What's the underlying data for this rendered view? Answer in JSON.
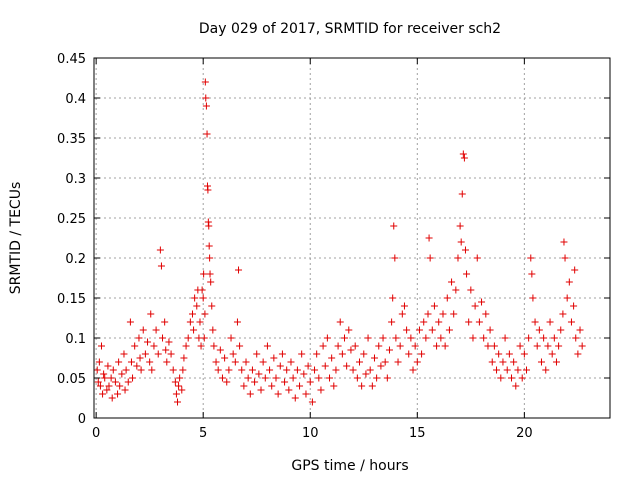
{
  "chart_data": {
    "type": "scatter",
    "title": "Day 029 of 2017, SRMTID for receiver sch2",
    "xlabel": "GPS time / hours",
    "ylabel": "SRMTID / TECUs",
    "xlim": [
      -0.1,
      24
    ],
    "ylim": [
      0,
      0.45
    ],
    "grid": true,
    "marker": "+",
    "color": "#e00000",
    "x_ticks": [
      0,
      5,
      10,
      15,
      20
    ],
    "x_tick_labels": [
      "0",
      "5",
      "10",
      "15",
      "20"
    ],
    "y_ticks": [
      0,
      0.05,
      0.1,
      0.15,
      0.2,
      0.25,
      0.3,
      0.35,
      0.4,
      0.45
    ],
    "y_tick_labels": [
      "0",
      "0.05",
      "0.1",
      "0.15",
      "0.2",
      "0.25",
      "0.3",
      "0.35",
      "0.4",
      "0.45"
    ],
    "series": [
      {
        "name": "SRMTID",
        "points": [
          [
            0.05,
            0.06
          ],
          [
            0.1,
            0.045
          ],
          [
            0.15,
            0.07
          ],
          [
            0.2,
            0.04
          ],
          [
            0.25,
            0.09
          ],
          [
            0.3,
            0.03
          ],
          [
            0.35,
            0.055
          ],
          [
            0.4,
            0.05
          ],
          [
            0.5,
            0.035
          ],
          [
            0.55,
            0.065
          ],
          [
            0.6,
            0.04
          ],
          [
            0.7,
            0.05
          ],
          [
            0.75,
            0.025
          ],
          [
            0.8,
            0.06
          ],
          [
            0.9,
            0.045
          ],
          [
            1.0,
            0.03
          ],
          [
            1.05,
            0.07
          ],
          [
            1.1,
            0.04
          ],
          [
            1.2,
            0.055
          ],
          [
            1.3,
            0.08
          ],
          [
            1.35,
            0.035
          ],
          [
            1.4,
            0.06
          ],
          [
            1.5,
            0.045
          ],
          [
            1.6,
            0.12
          ],
          [
            1.65,
            0.07
          ],
          [
            1.7,
            0.05
          ],
          [
            1.8,
            0.09
          ],
          [
            1.9,
            0.065
          ],
          [
            2.0,
            0.1
          ],
          [
            2.05,
            0.075
          ],
          [
            2.1,
            0.06
          ],
          [
            2.2,
            0.11
          ],
          [
            2.3,
            0.08
          ],
          [
            2.4,
            0.095
          ],
          [
            2.5,
            0.07
          ],
          [
            2.55,
            0.13
          ],
          [
            2.6,
            0.06
          ],
          [
            2.7,
            0.09
          ],
          [
            2.8,
            0.11
          ],
          [
            2.9,
            0.08
          ],
          [
            3.0,
            0.21
          ],
          [
            3.05,
            0.19
          ],
          [
            3.1,
            0.1
          ],
          [
            3.2,
            0.12
          ],
          [
            3.25,
            0.085
          ],
          [
            3.3,
            0.07
          ],
          [
            3.4,
            0.095
          ],
          [
            3.5,
            0.08
          ],
          [
            3.6,
            0.06
          ],
          [
            3.7,
            0.045
          ],
          [
            3.75,
            0.03
          ],
          [
            3.8,
            0.02
          ],
          [
            3.85,
            0.04
          ],
          [
            3.9,
            0.05
          ],
          [
            4.0,
            0.035
          ],
          [
            4.05,
            0.06
          ],
          [
            4.1,
            0.075
          ],
          [
            4.2,
            0.09
          ],
          [
            4.3,
            0.1
          ],
          [
            4.4,
            0.12
          ],
          [
            4.5,
            0.13
          ],
          [
            4.55,
            0.11
          ],
          [
            4.6,
            0.15
          ],
          [
            4.7,
            0.14
          ],
          [
            4.75,
            0.16
          ],
          [
            4.8,
            0.1
          ],
          [
            4.85,
            0.12
          ],
          [
            4.9,
            0.09
          ],
          [
            4.95,
            0.16
          ],
          [
            5.0,
            0.15
          ],
          [
            5.02,
            0.18
          ],
          [
            5.05,
            0.1
          ],
          [
            5.08,
            0.13
          ],
          [
            5.1,
            0.42
          ],
          [
            5.12,
            0.4
          ],
          [
            5.15,
            0.39
          ],
          [
            5.18,
            0.355
          ],
          [
            5.2,
            0.29
          ],
          [
            5.22,
            0.285
          ],
          [
            5.24,
            0.245
          ],
          [
            5.26,
            0.24
          ],
          [
            5.28,
            0.215
          ],
          [
            5.3,
            0.2
          ],
          [
            5.32,
            0.18
          ],
          [
            5.35,
            0.17
          ],
          [
            5.4,
            0.14
          ],
          [
            5.45,
            0.11
          ],
          [
            5.5,
            0.09
          ],
          [
            5.6,
            0.07
          ],
          [
            5.7,
            0.06
          ],
          [
            5.8,
            0.085
          ],
          [
            5.9,
            0.05
          ],
          [
            6.0,
            0.075
          ],
          [
            6.1,
            0.045
          ],
          [
            6.2,
            0.06
          ],
          [
            6.3,
            0.1
          ],
          [
            6.4,
            0.08
          ],
          [
            6.5,
            0.07
          ],
          [
            6.6,
            0.12
          ],
          [
            6.65,
            0.185
          ],
          [
            6.7,
            0.09
          ],
          [
            6.8,
            0.06
          ],
          [
            6.9,
            0.04
          ],
          [
            7.0,
            0.07
          ],
          [
            7.1,
            0.05
          ],
          [
            7.2,
            0.03
          ],
          [
            7.3,
            0.06
          ],
          [
            7.4,
            0.045
          ],
          [
            7.5,
            0.08
          ],
          [
            7.6,
            0.055
          ],
          [
            7.7,
            0.035
          ],
          [
            7.8,
            0.07
          ],
          [
            7.9,
            0.05
          ],
          [
            8.0,
            0.09
          ],
          [
            8.1,
            0.06
          ],
          [
            8.2,
            0.04
          ],
          [
            8.3,
            0.075
          ],
          [
            8.4,
            0.05
          ],
          [
            8.5,
            0.03
          ],
          [
            8.6,
            0.065
          ],
          [
            8.7,
            0.08
          ],
          [
            8.8,
            0.045
          ],
          [
            8.9,
            0.06
          ],
          [
            9.0,
            0.035
          ],
          [
            9.1,
            0.07
          ],
          [
            9.2,
            0.05
          ],
          [
            9.3,
            0.025
          ],
          [
            9.4,
            0.06
          ],
          [
            9.5,
            0.04
          ],
          [
            9.6,
            0.08
          ],
          [
            9.7,
            0.055
          ],
          [
            9.8,
            0.03
          ],
          [
            9.9,
            0.065
          ],
          [
            10.0,
            0.045
          ],
          [
            10.1,
            0.02
          ],
          [
            10.2,
            0.06
          ],
          [
            10.3,
            0.08
          ],
          [
            10.4,
            0.05
          ],
          [
            10.5,
            0.035
          ],
          [
            10.6,
            0.09
          ],
          [
            10.7,
            0.065
          ],
          [
            10.8,
            0.1
          ],
          [
            10.9,
            0.05
          ],
          [
            11.0,
            0.075
          ],
          [
            11.1,
            0.04
          ],
          [
            11.2,
            0.06
          ],
          [
            11.3,
            0.09
          ],
          [
            11.4,
            0.12
          ],
          [
            11.5,
            0.08
          ],
          [
            11.6,
            0.1
          ],
          [
            11.7,
            0.065
          ],
          [
            11.8,
            0.11
          ],
          [
            11.9,
            0.085
          ],
          [
            12.0,
            0.06
          ],
          [
            12.1,
            0.09
          ],
          [
            12.2,
            0.05
          ],
          [
            12.3,
            0.07
          ],
          [
            12.4,
            0.04
          ],
          [
            12.5,
            0.08
          ],
          [
            12.6,
            0.055
          ],
          [
            12.7,
            0.1
          ],
          [
            12.8,
            0.06
          ],
          [
            12.9,
            0.04
          ],
          [
            13.0,
            0.075
          ],
          [
            13.1,
            0.05
          ],
          [
            13.2,
            0.09
          ],
          [
            13.3,
            0.065
          ],
          [
            13.4,
            0.1
          ],
          [
            13.5,
            0.07
          ],
          [
            13.6,
            0.05
          ],
          [
            13.7,
            0.085
          ],
          [
            13.8,
            0.12
          ],
          [
            13.85,
            0.15
          ],
          [
            13.9,
            0.24
          ],
          [
            13.95,
            0.2
          ],
          [
            14.0,
            0.1
          ],
          [
            14.1,
            0.07
          ],
          [
            14.2,
            0.09
          ],
          [
            14.3,
            0.13
          ],
          [
            14.4,
            0.14
          ],
          [
            14.5,
            0.11
          ],
          [
            14.6,
            0.08
          ],
          [
            14.7,
            0.1
          ],
          [
            14.8,
            0.06
          ],
          [
            14.9,
            0.09
          ],
          [
            15.0,
            0.07
          ],
          [
            15.1,
            0.11
          ],
          [
            15.2,
            0.08
          ],
          [
            15.3,
            0.12
          ],
          [
            15.4,
            0.1
          ],
          [
            15.5,
            0.13
          ],
          [
            15.55,
            0.225
          ],
          [
            15.6,
            0.2
          ],
          [
            15.7,
            0.11
          ],
          [
            15.8,
            0.14
          ],
          [
            15.9,
            0.09
          ],
          [
            16.0,
            0.12
          ],
          [
            16.1,
            0.1
          ],
          [
            16.2,
            0.13
          ],
          [
            16.3,
            0.09
          ],
          [
            16.4,
            0.15
          ],
          [
            16.5,
            0.11
          ],
          [
            16.6,
            0.17
          ],
          [
            16.7,
            0.13
          ],
          [
            16.8,
            0.16
          ],
          [
            16.9,
            0.2
          ],
          [
            17.0,
            0.24
          ],
          [
            17.05,
            0.22
          ],
          [
            17.1,
            0.28
          ],
          [
            17.15,
            0.33
          ],
          [
            17.2,
            0.325
          ],
          [
            17.25,
            0.21
          ],
          [
            17.3,
            0.18
          ],
          [
            17.4,
            0.12
          ],
          [
            17.5,
            0.16
          ],
          [
            17.6,
            0.1
          ],
          [
            17.7,
            0.14
          ],
          [
            17.8,
            0.2
          ],
          [
            17.9,
            0.12
          ],
          [
            18.0,
            0.145
          ],
          [
            18.1,
            0.1
          ],
          [
            18.2,
            0.13
          ],
          [
            18.3,
            0.09
          ],
          [
            18.4,
            0.11
          ],
          [
            18.5,
            0.07
          ],
          [
            18.6,
            0.09
          ],
          [
            18.7,
            0.06
          ],
          [
            18.8,
            0.08
          ],
          [
            18.9,
            0.05
          ],
          [
            19.0,
            0.07
          ],
          [
            19.1,
            0.1
          ],
          [
            19.2,
            0.06
          ],
          [
            19.3,
            0.08
          ],
          [
            19.4,
            0.05
          ],
          [
            19.5,
            0.07
          ],
          [
            19.6,
            0.04
          ],
          [
            19.7,
            0.06
          ],
          [
            19.8,
            0.09
          ],
          [
            19.9,
            0.05
          ],
          [
            20.0,
            0.08
          ],
          [
            20.1,
            0.06
          ],
          [
            20.2,
            0.1
          ],
          [
            20.3,
            0.2
          ],
          [
            20.35,
            0.18
          ],
          [
            20.4,
            0.15
          ],
          [
            20.5,
            0.12
          ],
          [
            20.6,
            0.09
          ],
          [
            20.7,
            0.11
          ],
          [
            20.8,
            0.07
          ],
          [
            20.9,
            0.1
          ],
          [
            21.0,
            0.06
          ],
          [
            21.1,
            0.09
          ],
          [
            21.2,
            0.12
          ],
          [
            21.3,
            0.08
          ],
          [
            21.4,
            0.1
          ],
          [
            21.5,
            0.07
          ],
          [
            21.6,
            0.09
          ],
          [
            21.7,
            0.11
          ],
          [
            21.8,
            0.13
          ],
          [
            21.85,
            0.22
          ],
          [
            21.9,
            0.2
          ],
          [
            22.0,
            0.15
          ],
          [
            22.1,
            0.17
          ],
          [
            22.2,
            0.12
          ],
          [
            22.3,
            0.14
          ],
          [
            22.35,
            0.185
          ],
          [
            22.4,
            0.1
          ],
          [
            22.5,
            0.08
          ],
          [
            22.6,
            0.11
          ],
          [
            22.7,
            0.09
          ]
        ]
      }
    ]
  }
}
